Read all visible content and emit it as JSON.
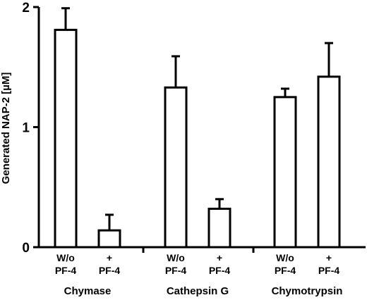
{
  "chart_data": {
    "type": "bar",
    "title": "",
    "xlabel": "",
    "ylabel": "Generated NAP-2 [µM]",
    "ylim": [
      0,
      2
    ],
    "yticks": [
      "0",
      "1",
      "2"
    ],
    "grid": false,
    "legend": "none",
    "bar_fill": "#ffffff",
    "bar_stroke": "#000000",
    "groups": [
      {
        "name": "Chymase",
        "bars": [
          {
            "line1": "W/o",
            "line2": "PF-4",
            "value": 1.81,
            "error": 0.18
          },
          {
            "line1": "+",
            "line2": "PF-4",
            "value": 0.14,
            "error": 0.13
          }
        ]
      },
      {
        "name": "Cathepsin G",
        "bars": [
          {
            "line1": "W/o",
            "line2": "PF-4",
            "value": 1.33,
            "error": 0.26
          },
          {
            "line1": "+",
            "line2": "PF-4",
            "value": 0.32,
            "error": 0.08
          }
        ]
      },
      {
        "name": "Chymotrypsin",
        "bars": [
          {
            "line1": "W/o",
            "line2": "PF-4",
            "value": 1.25,
            "error": 0.07
          },
          {
            "line1": "+",
            "line2": "PF-4",
            "value": 1.42,
            "error": 0.28
          }
        ]
      }
    ]
  }
}
